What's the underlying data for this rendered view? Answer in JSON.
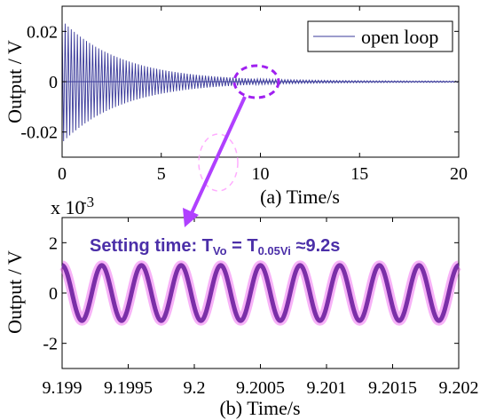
{
  "chart_data": [
    {
      "type": "line",
      "xlabel": "(a) Time/s",
      "ylabel": "Output / V",
      "xlim": [
        0,
        20
      ],
      "ylim": [
        -0.03,
        0.03
      ],
      "xticks": [
        0,
        5,
        10,
        15,
        20
      ],
      "xtick_labels": [
        "0",
        "5",
        "10",
        "15",
        "20"
      ],
      "yticks": [
        -0.02,
        0,
        0.02
      ],
      "ytick_labels": [
        "-0.02",
        "0",
        "0.02"
      ],
      "legend": {
        "position": "top-right",
        "entries": [
          "open loop"
        ]
      },
      "series": [
        {
          "name": "open loop",
          "color": "#3a3a9a",
          "description_values": {
            "initial_amplitude": 0.024,
            "decay_time_constant_s": 3.0,
            "oscillation": "dense sinusoid, envelope decays to ~0 by t≈10 s"
          }
        }
      ],
      "grid": false
    },
    {
      "type": "line",
      "xlabel": "(b) Time/s",
      "ylabel": "Output / V",
      "exponent_label": "x 10",
      "exponent_power": "-3",
      "xlim": [
        9.199,
        9.202
      ],
      "ylim": [
        -3,
        3
      ],
      "xticks": [
        9.199,
        9.1995,
        9.2,
        9.2005,
        9.201,
        9.2015,
        9.202
      ],
      "xtick_labels": [
        "9.199",
        "9.1995",
        "9.2",
        "9.2005",
        "9.201",
        "9.2015",
        "9.202"
      ],
      "yticks": [
        -2,
        0,
        2
      ],
      "ytick_labels": [
        "-2",
        "0",
        "2"
      ],
      "series": [
        {
          "color": "#7b2fa8",
          "glow_color": "#ee55ee",
          "amplitude": 1.1,
          "periods_in_window": 10
        }
      ],
      "annotation": {
        "prefix": "Setting time: T",
        "sub1": "Vo",
        "mid": " = T",
        "sub2": "0.05Vi",
        "suffix": " ≈9.2s",
        "color": "#4b2fa8"
      },
      "grid": false
    }
  ],
  "colors": {
    "zoom_highlight": "#a020f0",
    "pink_marker": "#ff66ff"
  }
}
